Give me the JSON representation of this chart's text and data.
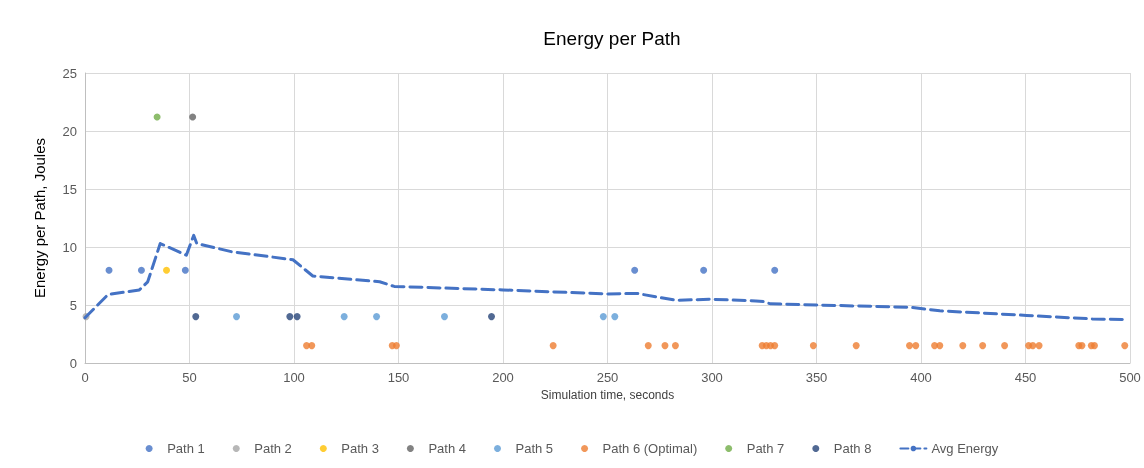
{
  "chart_data": {
    "type": "scatter",
    "title": "Energy per Path",
    "xlabel": "Simulation time, seconds",
    "ylabel": "Energy per Path, Joules",
    "xlim": [
      0,
      500
    ],
    "xticks": [
      0,
      50,
      100,
      150,
      200,
      250,
      300,
      350,
      400,
      450,
      500
    ],
    "ylim": [
      0,
      25
    ],
    "yticks": [
      0,
      5,
      10,
      15,
      20,
      25
    ],
    "grid": true,
    "legend": "bottom",
    "marker": "circle",
    "series": [
      {
        "name": "Path 1",
        "color": "#4472c4",
        "x": [
          11.5,
          27,
          48,
          263,
          296,
          330
        ],
        "values": [
          8,
          8,
          8,
          8,
          8,
          8
        ]
      },
      {
        "name": "Path 2",
        "color": "#a5a5a5",
        "x": [
          0.5
        ],
        "values": [
          4
        ]
      },
      {
        "name": "Path 3",
        "color": "#ffc000",
        "x": [
          39
        ],
        "values": [
          8
        ]
      },
      {
        "name": "Path 4",
        "color": "#636363",
        "x": [
          51.5
        ],
        "values": [
          21.2
        ]
      },
      {
        "name": "Path 5",
        "color": "#5b9bd5",
        "x": [
          72.5,
          124,
          139.5,
          172,
          248,
          253.5
        ],
        "values": [
          4,
          4,
          4,
          4,
          4,
          4
        ]
      },
      {
        "name": "Path 6 (Optimal)",
        "color": "#ed7d31",
        "x": [
          106,
          108.5,
          147,
          149,
          224,
          269.5,
          277.5,
          282.5,
          324,
          326,
          328,
          330,
          348.5,
          369,
          394.5,
          397.5,
          406.5,
          409,
          420,
          429.5,
          440,
          451.5,
          453.5,
          456.5,
          475.5,
          477,
          481.5,
          483,
          497.5
        ],
        "values": [
          1.5,
          1.5,
          1.5,
          1.5,
          1.5,
          1.5,
          1.5,
          1.5,
          1.5,
          1.5,
          1.5,
          1.5,
          1.5,
          1.5,
          1.5,
          1.5,
          1.5,
          1.5,
          1.5,
          1.5,
          1.5,
          1.5,
          1.5,
          1.5,
          1.5,
          1.5,
          1.5,
          1.5,
          1.5
        ]
      },
      {
        "name": "Path 7",
        "color": "#70ad47",
        "x": [
          34.5
        ],
        "values": [
          21.2
        ]
      },
      {
        "name": "Path 8",
        "color": "#264478",
        "x": [
          53,
          98,
          101.5,
          194.5
        ],
        "values": [
          4,
          4,
          4,
          4
        ]
      },
      {
        "name": "Avg Energy",
        "type": "line",
        "marker": "none",
        "line_style": "dashed",
        "color": "#4472c4",
        "x": [
          0,
          11,
          26,
          30,
          36,
          48.5,
          52,
          53.5,
          70,
          99.5,
          109,
          141,
          148,
          200,
          250,
          264,
          283,
          299,
          321,
          324.5,
          328,
          395,
          409,
          450.5,
          482,
          498
        ],
        "values": [
          3.9,
          5.9,
          6.3,
          7,
          10.3,
          9.3,
          11,
          10.3,
          9.6,
          8.9,
          7.5,
          7,
          6.6,
          6.3,
          5.95,
          6,
          5.4,
          5.5,
          5.35,
          5.3,
          5.1,
          4.8,
          4.5,
          4.1,
          3.8,
          3.75
        ]
      }
    ]
  }
}
